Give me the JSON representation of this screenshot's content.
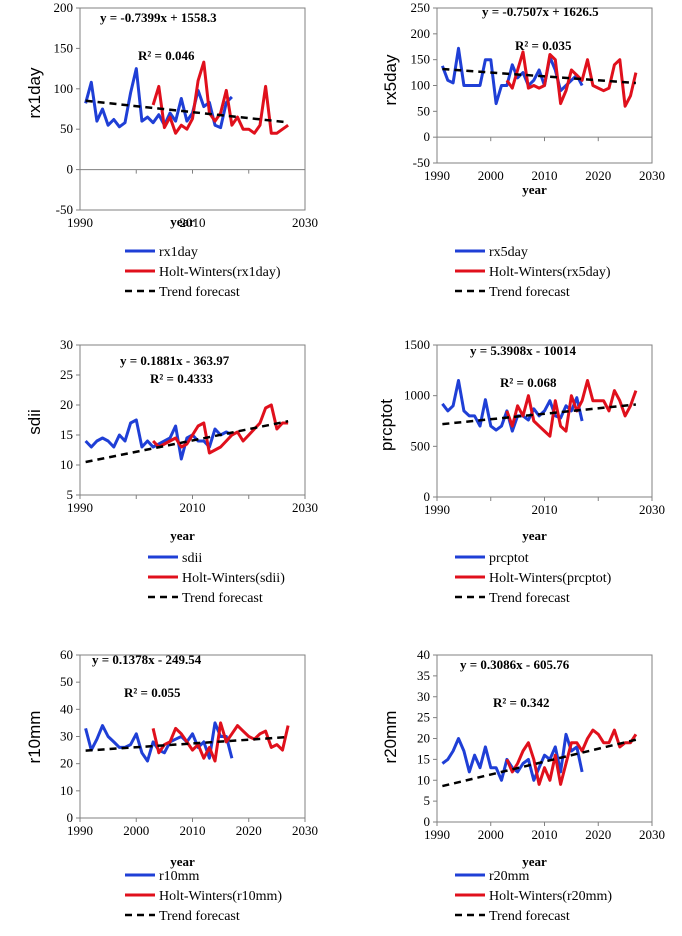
{
  "legend_labels": {
    "trend": "Trend forecast"
  },
  "colors": {
    "observed": "#1f3fd6",
    "holt": "#e0101c",
    "trend": "#000000",
    "axis": "#808080"
  },
  "chart_data": [
    {
      "type": "line",
      "ylabel": "rx1day",
      "xlabel": "year",
      "equation": "y = -0.7399x + 1558.3",
      "r2": "R² = 0.046",
      "xlim": [
        1990,
        2030
      ],
      "ylim": [
        -50,
        200
      ],
      "xticks": [
        "1990",
        "2010",
        "2030"
      ],
      "yticks": [
        "-50",
        "0",
        "50",
        "100",
        "150",
        "200"
      ],
      "legend": [
        "rx1day",
        "Holt-Winters(rx1day)",
        "Trend forecast"
      ],
      "trend": [
        [
          1991,
          85.2
        ],
        [
          2027,
          58.5
        ]
      ],
      "series": [
        {
          "name": "rx1day",
          "kind": "observed",
          "x": [
            1991,
            1992,
            1993,
            1994,
            1995,
            1996,
            1997,
            1998,
            1999,
            2000,
            2001,
            2002,
            2003,
            2004,
            2005,
            2006,
            2007,
            2008,
            2009,
            2010,
            2011,
            2012,
            2013,
            2014,
            2015,
            2016,
            2017
          ],
          "y": [
            82,
            108,
            60,
            75,
            55,
            62,
            53,
            58,
            95,
            125,
            60,
            65,
            58,
            68,
            55,
            70,
            60,
            88,
            60,
            70,
            98,
            78,
            83,
            55,
            52,
            83,
            90
          ]
        },
        {
          "name": "Holt-Winters(rx1day)",
          "kind": "holt",
          "x": [
            2003,
            2004,
            2005,
            2006,
            2007,
            2008,
            2009,
            2010,
            2011,
            2012,
            2013,
            2014,
            2015,
            2016,
            2017,
            2018,
            2019,
            2020,
            2021,
            2022,
            2023,
            2024,
            2025,
            2026,
            2027
          ],
          "y": [
            80,
            103,
            52,
            65,
            45,
            55,
            50,
            63,
            110,
            133,
            70,
            60,
            70,
            98,
            55,
            65,
            50,
            50,
            45,
            55,
            103,
            45,
            45,
            50,
            55
          ]
        }
      ]
    },
    {
      "type": "line",
      "ylabel": "rx5day",
      "xlabel": "year",
      "equation": "y = -0.7507x + 1626.5",
      "r2": "R² = 0.035",
      "xlim": [
        1990,
        2030
      ],
      "ylim": [
        -50,
        250
      ],
      "xticks": [
        "1990",
        "2000",
        "2010",
        "2020",
        "2030"
      ],
      "yticks": [
        "-50",
        "0",
        "50",
        "100",
        "150",
        "200",
        "250"
      ],
      "legend": [
        "rx5day",
        "Holt-Winters(rx5day)",
        "Trend forecast"
      ],
      "trend": [
        [
          1991,
          131.9
        ],
        [
          2027,
          104.9
        ]
      ],
      "series": [
        {
          "name": "rx5day",
          "kind": "observed",
          "x": [
            1991,
            1992,
            1993,
            1994,
            1995,
            1996,
            1997,
            1998,
            1999,
            2000,
            2001,
            2002,
            2003,
            2004,
            2005,
            2006,
            2007,
            2008,
            2009,
            2010,
            2011,
            2012,
            2013,
            2014,
            2015,
            2016,
            2017
          ],
          "y": [
            138,
            110,
            105,
            172,
            100,
            100,
            100,
            100,
            150,
            150,
            65,
            100,
            100,
            140,
            115,
            125,
            100,
            110,
            130,
            100,
            155,
            130,
            90,
            100,
            110,
            120,
            100
          ]
        },
        {
          "name": "Holt-Winters(rx5day)",
          "kind": "holt",
          "x": [
            2003,
            2004,
            2005,
            2006,
            2007,
            2008,
            2009,
            2010,
            2011,
            2012,
            2013,
            2014,
            2015,
            2016,
            2017,
            2018,
            2019,
            2020,
            2021,
            2022,
            2023,
            2024,
            2025,
            2026,
            2027
          ],
          "y": [
            110,
            95,
            130,
            165,
            95,
            100,
            95,
            100,
            160,
            150,
            65,
            90,
            130,
            120,
            110,
            150,
            100,
            95,
            90,
            95,
            140,
            150,
            60,
            80,
            125
          ]
        }
      ]
    },
    {
      "type": "line",
      "ylabel": "sdii",
      "xlabel": "year",
      "equation": "y = 0.1881x - 363.97",
      "r2": "R² = 0.4333",
      "xlim": [
        1990,
        2030
      ],
      "ylim": [
        5,
        30
      ],
      "xticks": [
        "1990",
        "2010",
        "2030"
      ],
      "yticks": [
        "5",
        "10",
        "15",
        "20",
        "25",
        "30"
      ],
      "legend": [
        "sdii",
        "Holt-Winters(sdii)",
        "Trend forecast"
      ],
      "trend": [
        [
          1991,
          10.5
        ],
        [
          2027,
          17.3
        ]
      ],
      "series": [
        {
          "name": "sdii",
          "kind": "observed",
          "x": [
            1991,
            1992,
            1993,
            1994,
            1995,
            1996,
            1997,
            1998,
            1999,
            2000,
            2001,
            2002,
            2003,
            2004,
            2005,
            2006,
            2007,
            2008,
            2009,
            2010,
            2011,
            2012,
            2013,
            2014,
            2015,
            2016,
            2017
          ],
          "y": [
            14,
            13,
            14,
            14.5,
            14,
            13,
            15,
            14,
            17,
            17.5,
            13,
            14,
            13,
            13.5,
            14,
            14.5,
            16.5,
            11,
            14.5,
            15,
            14,
            14,
            13,
            16,
            15,
            15.5,
            15
          ]
        },
        {
          "name": "Holt-Winters(sdii)",
          "kind": "holt",
          "x": [
            2003,
            2004,
            2005,
            2006,
            2007,
            2008,
            2009,
            2010,
            2011,
            2012,
            2013,
            2014,
            2015,
            2016,
            2017,
            2018,
            2019,
            2020,
            2021,
            2022,
            2023,
            2024,
            2025,
            2026,
            2027
          ],
          "y": [
            14,
            13,
            13.5,
            14,
            14.5,
            13,
            13.5,
            15,
            16.5,
            17,
            12,
            12.5,
            13,
            14,
            15,
            15.5,
            14,
            15,
            16,
            17,
            19.5,
            20,
            16,
            17,
            17
          ]
        }
      ]
    },
    {
      "type": "line",
      "ylabel": "prcptot",
      "xlabel": "year",
      "equation": "y = 5.3908x - 10014",
      "r2": "R² = 0.068",
      "xlim": [
        1990,
        2030
      ],
      "ylim": [
        0,
        1500
      ],
      "xticks": [
        "1990",
        "2010",
        "2030"
      ],
      "yticks": [
        "0",
        "500",
        "1000",
        "1500"
      ],
      "legend": [
        "prcptot",
        "Holt-Winters(prcptot)",
        "Trend forecast"
      ],
      "trend": [
        [
          1991,
          719
        ],
        [
          2027,
          913
        ]
      ],
      "series": [
        {
          "name": "prcptot",
          "kind": "observed",
          "x": [
            1991,
            1992,
            1993,
            1994,
            1995,
            1996,
            1997,
            1998,
            1999,
            2000,
            2001,
            2002,
            2003,
            2004,
            2005,
            2006,
            2007,
            2008,
            2009,
            2010,
            2011,
            2012,
            2013,
            2014,
            2015,
            2016,
            2017
          ],
          "y": [
            920,
            850,
            900,
            1150,
            850,
            800,
            800,
            700,
            960,
            700,
            660,
            700,
            850,
            650,
            800,
            800,
            760,
            870,
            800,
            850,
            950,
            800,
            780,
            900,
            850,
            980,
            750
          ]
        },
        {
          "name": "Holt-Winters(prcptot)",
          "kind": "holt",
          "x": [
            2003,
            2004,
            2005,
            2006,
            2007,
            2008,
            2009,
            2010,
            2011,
            2012,
            2013,
            2014,
            2015,
            2016,
            2017,
            2018,
            2019,
            2020,
            2021,
            2022,
            2023,
            2024,
            2025,
            2026,
            2027
          ],
          "y": [
            850,
            700,
            900,
            800,
            1000,
            750,
            700,
            650,
            600,
            950,
            700,
            650,
            1000,
            850,
            950,
            1150,
            950,
            950,
            950,
            850,
            1050,
            950,
            800,
            900,
            1050
          ]
        }
      ]
    },
    {
      "type": "line",
      "ylabel": "r10mm",
      "xlabel": "year",
      "equation": "y = 0.1378x - 249.54",
      "r2": "R² = 0.055",
      "xlim": [
        1990,
        2030
      ],
      "ylim": [
        0,
        60
      ],
      "xticks": [
        "1990",
        "2000",
        "2010",
        "2020",
        "2030"
      ],
      "yticks": [
        "0",
        "10",
        "20",
        "30",
        "40",
        "50",
        "60"
      ],
      "legend": [
        "r10mm",
        "Holt-Winters(r10mm)",
        "Trend forecast"
      ],
      "trend": [
        [
          1991,
          24.8
        ],
        [
          2027,
          29.8
        ]
      ],
      "series": [
        {
          "name": "r10mm",
          "kind": "observed",
          "x": [
            1991,
            1992,
            1993,
            1994,
            1995,
            1996,
            1997,
            1998,
            1999,
            2000,
            2001,
            2002,
            2003,
            2004,
            2005,
            2006,
            2007,
            2008,
            2009,
            2010,
            2011,
            2012,
            2013,
            2014,
            2015,
            2016,
            2017
          ],
          "y": [
            33,
            25,
            29,
            34,
            30,
            28,
            26,
            26,
            27,
            31,
            24,
            21,
            28,
            25,
            24,
            28,
            29,
            30,
            28,
            31,
            26,
            28,
            22,
            35,
            30,
            30,
            22
          ]
        },
        {
          "name": "Holt-Winters(r10mm)",
          "kind": "holt",
          "x": [
            2003,
            2004,
            2005,
            2006,
            2007,
            2008,
            2009,
            2010,
            2011,
            2012,
            2013,
            2014,
            2015,
            2016,
            2017,
            2018,
            2019,
            2020,
            2021,
            2022,
            2023,
            2024,
            2025,
            2026,
            2027
          ],
          "y": [
            33,
            24,
            27,
            28,
            33,
            31,
            28,
            25,
            27,
            22,
            26,
            21,
            35,
            28,
            31,
            34,
            32,
            30,
            29,
            31,
            32,
            26,
            27,
            25,
            34
          ]
        }
      ]
    },
    {
      "type": "line",
      "ylabel": "r20mm",
      "xlabel": "year",
      "equation": "y = 0.3086x - 605.76",
      "r2": "R² = 0.342",
      "xlim": [
        1990,
        2030
      ],
      "ylim": [
        0,
        40
      ],
      "xticks": [
        "1990",
        "2000",
        "2010",
        "2020",
        "2030"
      ],
      "yticks": [
        "0",
        "5",
        "10",
        "15",
        "20",
        "25",
        "30",
        "35",
        "40"
      ],
      "legend": [
        "r20mm",
        "Holt-Winters(r20mm)",
        "Trend forecast"
      ],
      "trend": [
        [
          1991,
          8.6
        ],
        [
          2027,
          19.7
        ]
      ],
      "series": [
        {
          "name": "r20mm",
          "kind": "observed",
          "x": [
            1991,
            1992,
            1993,
            1994,
            1995,
            1996,
            1997,
            1998,
            1999,
            2000,
            2001,
            2002,
            2003,
            2004,
            2005,
            2006,
            2007,
            2008,
            2009,
            2010,
            2011,
            2012,
            2013,
            2014,
            2015,
            2016,
            2017
          ],
          "y": [
            14,
            15,
            17,
            20,
            17,
            12,
            16,
            13,
            18,
            13,
            13,
            10,
            15,
            13,
            12,
            14,
            15,
            10,
            13,
            16,
            15,
            18,
            12,
            21,
            17,
            18,
            12
          ]
        },
        {
          "name": "Holt-Winters(r20mm)",
          "kind": "holt",
          "x": [
            2003,
            2004,
            2005,
            2006,
            2007,
            2008,
            2009,
            2010,
            2011,
            2012,
            2013,
            2014,
            2015,
            2016,
            2017,
            2018,
            2019,
            2020,
            2021,
            2022,
            2023,
            2024,
            2025,
            2026,
            2027
          ],
          "y": [
            15,
            12,
            14,
            17,
            19,
            15,
            9,
            13,
            10,
            16,
            9,
            14,
            19,
            19,
            17,
            20,
            22,
            21,
            19,
            19,
            22,
            18,
            19,
            19,
            21
          ]
        }
      ]
    }
  ]
}
